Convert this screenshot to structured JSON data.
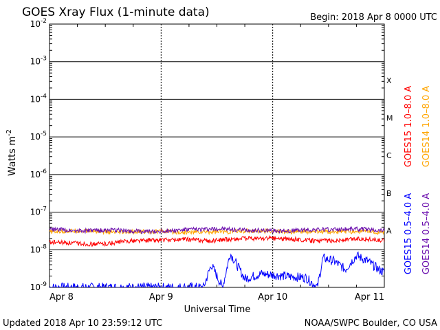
{
  "chart_data": {
    "type": "line",
    "title": "GOES Xray Flux (1-minute data)",
    "begin_label": "Begin:  2018 Apr 8 0000 UTC",
    "xlabel": "Universal Time",
    "ylabel": "Watts m",
    "ylabel_superscript": "-2",
    "updated": "Updated 2018 Apr 10 23:59:12 UTC",
    "credit": "NOAA/SWPC Boulder, CO USA",
    "x_ticks": [
      "Apr 8",
      "Apr 9",
      "Apr 10",
      "Apr 11"
    ],
    "y_scale": "log",
    "ylim": [
      1e-09,
      0.01
    ],
    "y_tick_exponents": [
      "-2",
      "-3",
      "-4",
      "-5",
      "-6",
      "-7",
      "-8",
      "-9"
    ],
    "y_tick_base": "10",
    "flare_classes": [
      {
        "label": "X",
        "value": 0.00032
      },
      {
        "label": "M",
        "value": 3.2e-05
      },
      {
        "label": "C",
        "value": 3.2e-06
      },
      {
        "label": "B",
        "value": 3.2e-07
      },
      {
        "label": "A",
        "value": 3.2e-08
      }
    ],
    "colors": {
      "goes15_long": "#ff0000",
      "goes14_long": "#ffa500",
      "goes15_short": "#0000ff",
      "goes14_short": "#6a0dad"
    },
    "legend_right": [
      {
        "text": "GOES15 1.0–8.0 A",
        "color": "#ff0000",
        "series": "goes15_long"
      },
      {
        "text": "GOES14 1.0–8.0 A",
        "color": "#ffa500",
        "series": "goes14_long"
      },
      {
        "text": "GOES15 0.5–4.0 A",
        "color": "#0000ff",
        "series": "goes15_short"
      },
      {
        "text": "GOES14 0.5–4.0 A",
        "color": "#6a0dad",
        "series": "goes14_short"
      }
    ],
    "series": [
      {
        "name": "GOES14 1.0–8.0 A",
        "key": "goes14_long",
        "x_days": [
          0,
          0.25,
          0.45,
          0.6,
          0.75,
          1.0,
          1.2,
          1.45,
          1.6,
          1.8,
          2.0,
          2.2,
          2.4,
          2.6,
          2.8,
          3.0
        ],
        "values": [
          3e-08,
          3.2e-08,
          3.1e-08,
          2.8e-08,
          3e-08,
          3.1e-08,
          2.9e-08,
          3e-08,
          3e-08,
          3.2e-08,
          3.1e-08,
          3e-08,
          3e-08,
          3e-08,
          3.1e-08,
          2.9e-08
        ]
      },
      {
        "name": "GOES15 1.0–8.0 A",
        "key": "goes15_long",
        "x_days": [
          0,
          0.2,
          0.4,
          0.55,
          0.7,
          0.9,
          1.05,
          1.25,
          1.45,
          1.6,
          1.8,
          2.0,
          2.2,
          2.4,
          2.6,
          2.8,
          3.0
        ],
        "values": [
          1.6e-08,
          1.5e-08,
          1.4e-08,
          1.5e-08,
          1.7e-08,
          1.8e-08,
          1.8e-08,
          1.9e-08,
          1.7e-08,
          1.9e-08,
          2e-08,
          2e-08,
          1.9e-08,
          1.7e-08,
          1.8e-08,
          2e-08,
          1.7e-08
        ]
      },
      {
        "name": "GOES15 0.5–4.0 A",
        "key": "goes15_short",
        "x_days": [
          0,
          0.5,
          1.0,
          1.38,
          1.45,
          1.55,
          1.62,
          1.75,
          1.9,
          2.1,
          2.3,
          2.4,
          2.45,
          2.55,
          2.65,
          2.75,
          2.85,
          2.95,
          3.0
        ],
        "values": [
          1e-09,
          1e-09,
          1e-09,
          1e-09,
          4e-09,
          1e-09,
          8e-09,
          1.7e-09,
          2.3e-09,
          2e-09,
          1.8e-09,
          1e-09,
          6e-09,
          5e-09,
          3e-09,
          7e-09,
          5e-09,
          3e-09,
          2.5e-09
        ]
      },
      {
        "name": "GOES14 0.5–4.0 A",
        "key": "goes14_short",
        "x_days": [
          0,
          0.3,
          0.6,
          0.9,
          1.2,
          1.5,
          1.8,
          2.1,
          2.4,
          2.7,
          3.0
        ],
        "values": [
          3.5e-08,
          3.2e-08,
          3.3e-08,
          3e-08,
          3.4e-08,
          3.6e-08,
          3.3e-08,
          3.2e-08,
          3.4e-08,
          3.6e-08,
          3.3e-08
        ]
      }
    ]
  }
}
